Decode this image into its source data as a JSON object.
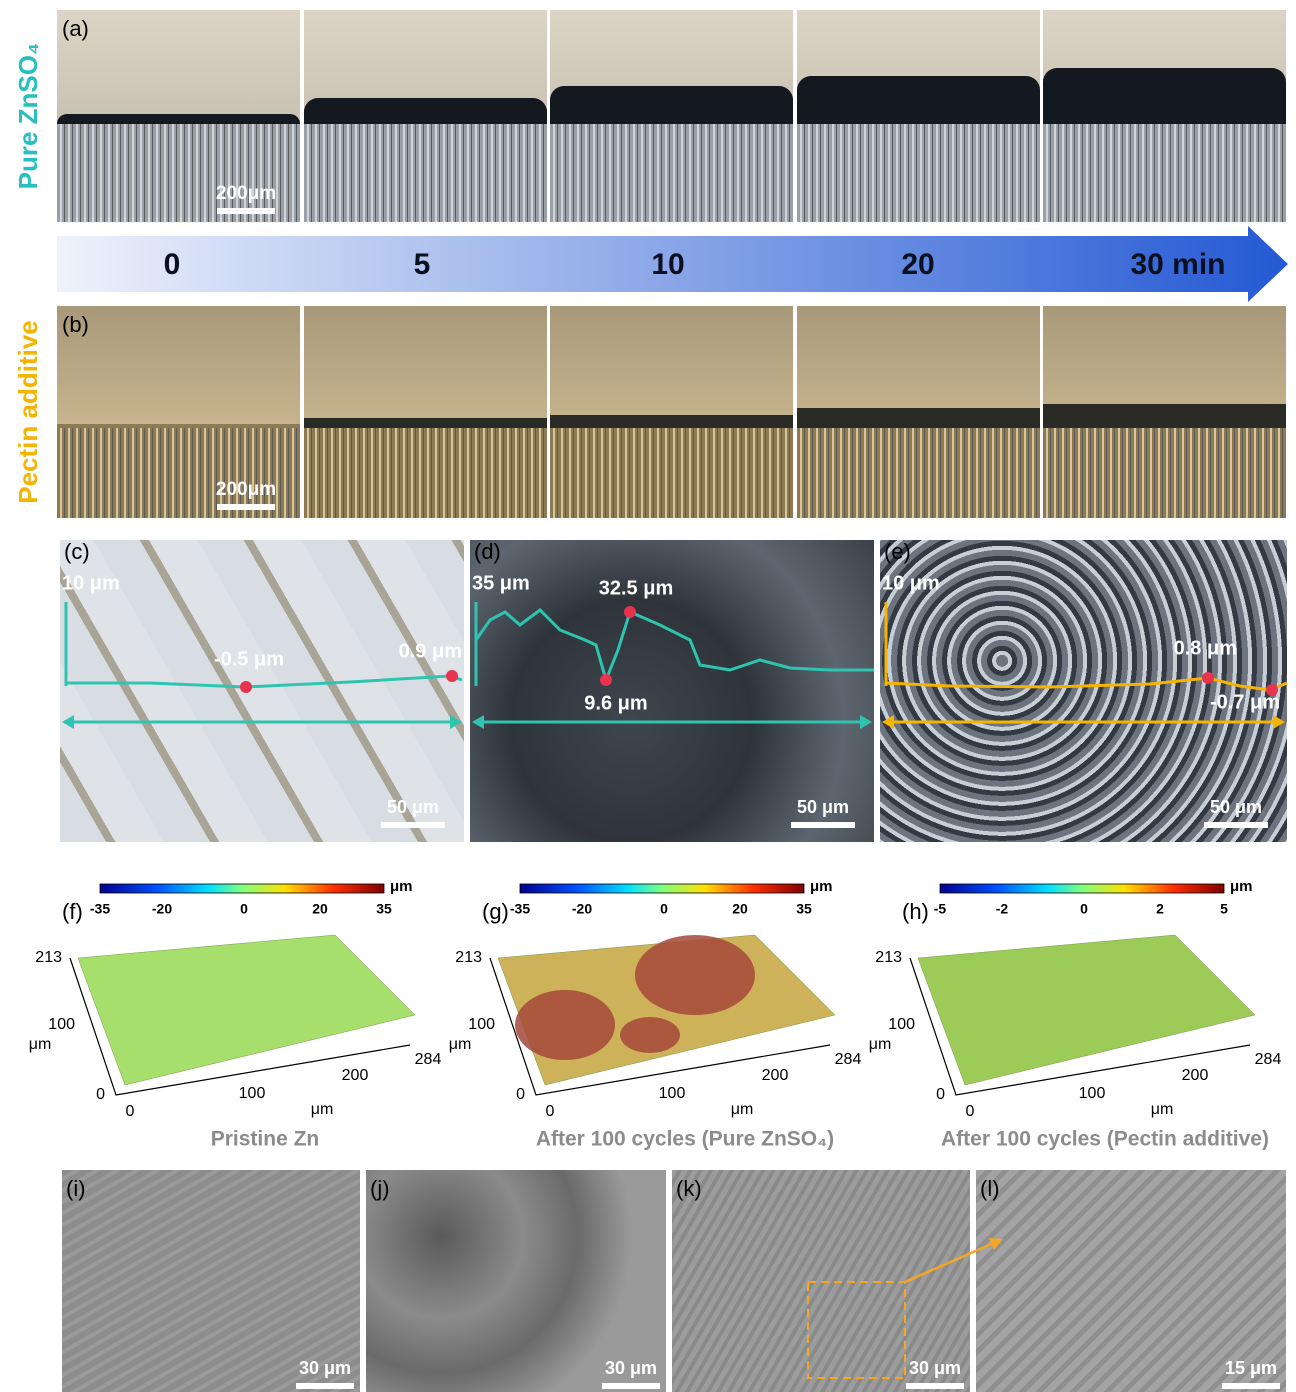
{
  "panel_a": {
    "label": "(a)",
    "row_label": "Pure ZnSO₄",
    "scale_bar": "200μm"
  },
  "timeline": {
    "labels": [
      "0",
      "5",
      "10",
      "20",
      "30 min"
    ]
  },
  "panel_b": {
    "label": "(b)",
    "row_label": "Pectin additive",
    "scale_bar": "200μm"
  },
  "profiles": [
    {
      "label": "(c)",
      "height_label": "10 μm",
      "annotations": [
        "-0.5 μm",
        "0.9 μm"
      ],
      "scale_bar": "50 μm"
    },
    {
      "label": "(d)",
      "height_label": "35 μm",
      "annotations": [
        "32.5 μm",
        "9.6 μm"
      ],
      "scale_bar": "50 μm"
    },
    {
      "label": "(e)",
      "height_label": "10 μm",
      "annotations": [
        "0.8 μm",
        "-0.7 μm"
      ],
      "scale_bar": "50 μm"
    }
  ],
  "surfaces": [
    {
      "label": "(f)",
      "colorbar_ticks": [
        "-35",
        "-20",
        "0",
        "20",
        "35"
      ],
      "colorbar_unit": "μm",
      "y_ticks": [
        "213",
        "100",
        "0"
      ],
      "y_unit": "μm",
      "x_ticks": [
        "0",
        "100",
        "200",
        "284"
      ],
      "x_unit": "μm",
      "caption": "Pristine Zn"
    },
    {
      "label": "(g)",
      "colorbar_ticks": [
        "-35",
        "-20",
        "0",
        "20",
        "35"
      ],
      "colorbar_unit": "μm",
      "y_ticks": [
        "213",
        "100",
        "0"
      ],
      "y_unit": "μm",
      "x_ticks": [
        "0",
        "100",
        "200",
        "284"
      ],
      "x_unit": "μm",
      "caption": "After 100 cycles (Pure ZnSO₄)"
    },
    {
      "label": "(h)",
      "colorbar_ticks": [
        "-5",
        "-2",
        "0",
        "2",
        "5"
      ],
      "colorbar_unit": "μm",
      "y_ticks": [
        "213",
        "100",
        "0"
      ],
      "y_unit": "μm",
      "x_ticks": [
        "0",
        "100",
        "200",
        "284"
      ],
      "x_unit": "μm",
      "caption": "After 100 cycles (Pectin additive)"
    }
  ],
  "sem": [
    {
      "label": "(i)",
      "scale_bar": "30 μm"
    },
    {
      "label": "(j)",
      "scale_bar": "30 μm"
    },
    {
      "label": "(k)",
      "scale_bar": "30 μm"
    },
    {
      "label": "(l)",
      "scale_bar": "15 μm"
    }
  ]
}
